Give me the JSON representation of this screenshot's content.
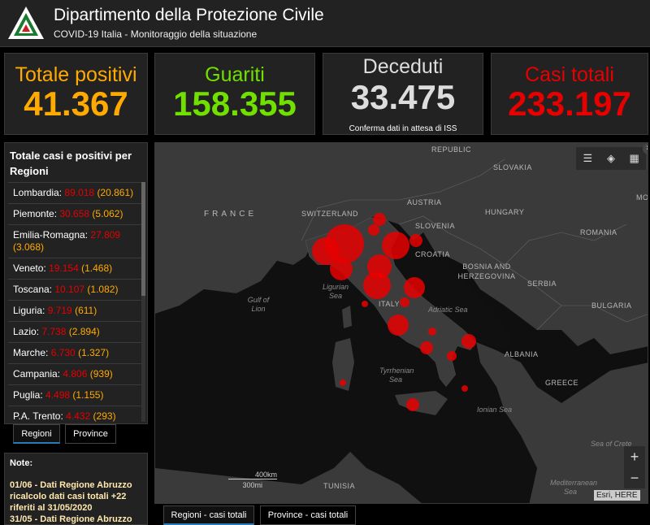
{
  "header": {
    "title": "Dipartimento della Protezione Civile",
    "subtitle": "COVID-19 Italia - Monitoraggio della situazione"
  },
  "cards": [
    {
      "label": "Totale positivi",
      "value": "41.367",
      "color": "#ffaa00"
    },
    {
      "label": "Guariti",
      "value": "158.355",
      "color": "#70e000"
    },
    {
      "label": "Deceduti",
      "value": "33.475",
      "color": "#dddddd",
      "note": "Conferma dati in attesa di ISS"
    },
    {
      "label": "Casi totali",
      "value": "233.197",
      "color": "#e60000"
    }
  ],
  "regions_panel": {
    "title": "Totale casi e positivi per Regioni",
    "items": [
      {
        "name": "Lombardia:",
        "total": "89.018",
        "positive": "(20.861)"
      },
      {
        "name": "Piemonte:",
        "total": "30.658",
        "positive": "(5.062)"
      },
      {
        "name": "Emilia-Romagna:",
        "total": "27.809",
        "positive": "(3.068)"
      },
      {
        "name": "Veneto:",
        "total": "19.154",
        "positive": "(1.468)"
      },
      {
        "name": "Toscana:",
        "total": "10.107",
        "positive": "(1.082)"
      },
      {
        "name": "Liguria:",
        "total": "9.719",
        "positive": "(611)"
      },
      {
        "name": "Lazio:",
        "total": "7.738",
        "positive": "(2.894)"
      },
      {
        "name": "Marche:",
        "total": "6.730",
        "positive": "(1.327)"
      },
      {
        "name": "Campania:",
        "total": "4.806",
        "positive": "(939)"
      },
      {
        "name": "Puglia:",
        "total": "4.498",
        "positive": "(1.155)"
      },
      {
        "name": "P.A. Trento:",
        "total": "4.432",
        "positive": "(293)"
      }
    ]
  },
  "list_tabs": {
    "regioni": "Regioni",
    "province": "Province"
  },
  "notes": {
    "title": "Note:",
    "text": "01/06 - Dati Regione Abruzzo ricalcolo dati casi totali +22 riferiti al 31/05/2020",
    "text2": "31/05 - Dati Regione Abruzzo"
  },
  "map": {
    "labels": {
      "republic": "REPUBLIC",
      "slovakia": "SLOVAKIA",
      "austria": "AUSTRIA",
      "hungary": "HUNGARY",
      "france": "FRANCE",
      "switzerland": "SWITZERLAND",
      "slovenia": "SLOVENIA",
      "romania": "ROMANIA",
      "croatia": "CROATIA",
      "bosnia": "BOSNIA AND HERZEGOVINA",
      "serbia": "SERBIA",
      "italy": "ITALY",
      "bulgaria": "BULGARIA",
      "albania": "ALBANIA",
      "greece": "GREECE",
      "tunisia": "TUNISIA",
      "mo": "MO"
    },
    "seas": {
      "ligurian": "Ligurian Sea",
      "gulf_lion": "Gulf of Lion",
      "adriatic": "Adriatic Sea",
      "tyrrhenian": "Tyrrhenian Sea",
      "ionian": "Ionian Sea",
      "crete": "Sea of Crete",
      "mediterranean": "Mediterranean Sea"
    },
    "scale_km": "400km",
    "scale_mi": "300mi",
    "attribution": "Esri, HERE",
    "zoom_in": "+",
    "zoom_out": "−",
    "bubble_color": "#e60000"
  },
  "map_tabs": {
    "regioni": "Regioni - casi totali",
    "province": "Province - casi totali"
  }
}
